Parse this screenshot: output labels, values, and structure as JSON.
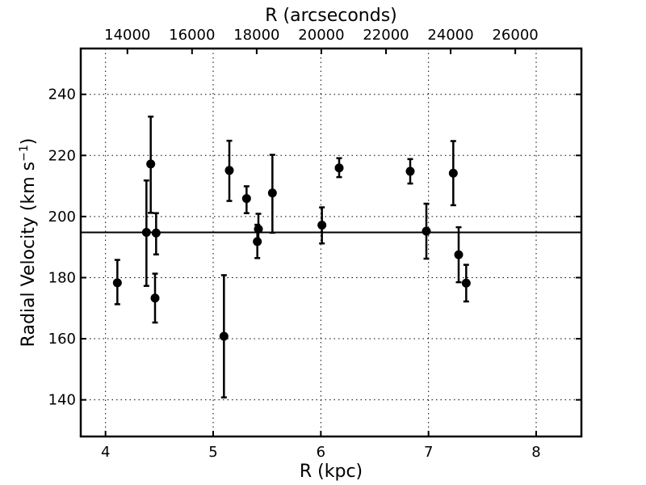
{
  "chart_data": {
    "type": "scatter",
    "title": "",
    "xlabel": "R (kpc)",
    "x2label": "R (arcseconds)",
    "ylabel_main": "Radial Velocity (km s",
    "ylabel_sup": "−1",
    "ylabel_end": ")",
    "xlim": [
      3.77,
      8.42
    ],
    "ylim": [
      128,
      255
    ],
    "x2_ticks": [
      {
        "value": 14000,
        "label": "14000"
      },
      {
        "value": 16000,
        "label": "16000"
      },
      {
        "value": 18000,
        "label": "18000"
      },
      {
        "value": 20000,
        "label": "20000"
      },
      {
        "value": 22000,
        "label": "22000"
      },
      {
        "value": 24000,
        "label": "24000"
      },
      {
        "value": 26000,
        "label": "26000"
      }
    ],
    "x2_per_kpc": 3330.8,
    "x_ticks": [
      {
        "value": 4,
        "label": "4"
      },
      {
        "value": 5,
        "label": "5"
      },
      {
        "value": 6,
        "label": "6"
      },
      {
        "value": 7,
        "label": "7"
      },
      {
        "value": 8,
        "label": "8"
      }
    ],
    "y_ticks": [
      {
        "value": 140,
        "label": "140"
      },
      {
        "value": 160,
        "label": "160"
      },
      {
        "value": 180,
        "label": "180"
      },
      {
        "value": 200,
        "label": "200"
      },
      {
        "value": 220,
        "label": "220"
      },
      {
        "value": 240,
        "label": "240"
      }
    ],
    "grid": true,
    "reference_line_y": 194.8,
    "points": [
      {
        "x": 4.11,
        "y": 178.3,
        "err_low": 7.0,
        "err_high": 7.5
      },
      {
        "x": 4.38,
        "y": 194.8,
        "err_low": 17.5,
        "err_high": 17.0
      },
      {
        "x": 4.42,
        "y": 217.2,
        "err_low": 16.0,
        "err_high": 15.5
      },
      {
        "x": 4.46,
        "y": 173.3,
        "err_low": 8.0,
        "err_high": 8.0
      },
      {
        "x": 4.47,
        "y": 194.6,
        "err_low": 7.0,
        "err_high": 6.5
      },
      {
        "x": 5.1,
        "y": 160.8,
        "err_low": 20.0,
        "err_high": 20.0
      },
      {
        "x": 5.15,
        "y": 215.1,
        "err_low": 10.0,
        "err_high": 9.7
      },
      {
        "x": 5.31,
        "y": 205.9,
        "err_low": 4.8,
        "err_high": 4.0
      },
      {
        "x": 5.41,
        "y": 191.8,
        "err_low": 5.4,
        "err_high": 5.5
      },
      {
        "x": 5.42,
        "y": 195.9,
        "err_low": 4.0,
        "err_high": 5.0
      },
      {
        "x": 5.55,
        "y": 207.7,
        "err_low": 13.0,
        "err_high": 12.5
      },
      {
        "x": 6.01,
        "y": 197.2,
        "err_low": 6.0,
        "err_high": 5.8
      },
      {
        "x": 6.17,
        "y": 215.9,
        "err_low": 3.0,
        "err_high": 3.2
      },
      {
        "x": 6.83,
        "y": 214.8,
        "err_low": 4.0,
        "err_high": 4.0
      },
      {
        "x": 6.98,
        "y": 195.2,
        "err_low": 9.0,
        "err_high": 9.0
      },
      {
        "x": 7.23,
        "y": 214.2,
        "err_low": 10.5,
        "err_high": 10.5
      },
      {
        "x": 7.28,
        "y": 187.5,
        "err_low": 9.0,
        "err_high": 9.0
      },
      {
        "x": 7.35,
        "y": 178.2,
        "err_low": 6.0,
        "err_high": 6.0
      }
    ]
  }
}
